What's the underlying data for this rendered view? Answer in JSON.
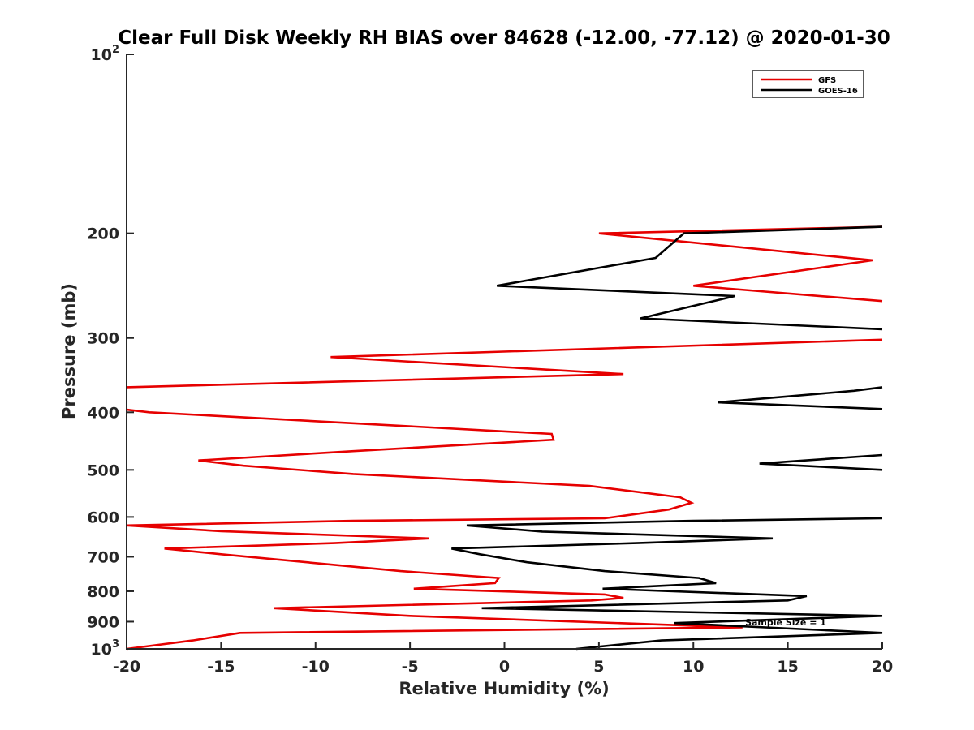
{
  "chart_data": {
    "type": "line",
    "title": "Clear Full Disk Weekly RH BIAS over 84628 (-12.00, -77.12) @ 2020-01-30",
    "xlabel": "Relative Humidity (%)",
    "ylabel": "Pressure (mb)",
    "xlim": [
      -20,
      20
    ],
    "ylim": [
      100,
      1000
    ],
    "yscale": "log",
    "y_reversed": true,
    "grid": false,
    "legend_position": "top-right",
    "x_ticks": [
      "-20",
      "-15",
      "-10",
      "-5",
      "0",
      "5",
      "10",
      "15",
      "20"
    ],
    "y_ticks": [
      {
        "value": 100,
        "base": "10",
        "exp": "2"
      },
      {
        "value": 200,
        "label": "200"
      },
      {
        "value": 300,
        "label": "300"
      },
      {
        "value": 400,
        "label": "400"
      },
      {
        "value": 500,
        "label": "500"
      },
      {
        "value": 600,
        "label": "600"
      },
      {
        "value": 700,
        "label": "700"
      },
      {
        "value": 800,
        "label": "800"
      },
      {
        "value": 900,
        "label": "900"
      },
      {
        "value": 1000,
        "base": "10",
        "exp": "3"
      }
    ],
    "series": [
      {
        "name": "GFS",
        "color": "#e60000",
        "points": [
          [
            20.0,
            195
          ],
          [
            5.0,
            200
          ],
          [
            19.5,
            222
          ],
          [
            10.0,
            245
          ],
          [
            20.0,
            260
          ],
          [
            null,
            null
          ],
          [
            20.0,
            302
          ],
          [
            -9.2,
            323
          ],
          [
            6.3,
            345
          ],
          [
            -20.0,
            363
          ],
          [
            null,
            null
          ],
          [
            -20.0,
            396
          ],
          [
            -18.8,
            400
          ],
          [
            2.5,
            435
          ],
          [
            2.6,
            445
          ],
          [
            -8.0,
            465
          ],
          [
            -16.2,
            482
          ],
          [
            -13.8,
            492
          ],
          [
            -8.0,
            508
          ],
          [
            4.5,
            532
          ],
          [
            9.3,
            556
          ],
          [
            9.9,
            568
          ],
          [
            8.7,
            583
          ],
          [
            5.3,
            603
          ],
          [
            -8.0,
            609
          ],
          [
            -20.0,
            620
          ],
          [
            -15.0,
            634
          ],
          [
            -4.0,
            652
          ],
          [
            -9.0,
            664
          ],
          [
            -18.0,
            678
          ],
          [
            -15.0,
            693
          ],
          [
            -5.5,
            740
          ],
          [
            -0.3,
            760
          ],
          [
            -0.5,
            775
          ],
          [
            -4.8,
            792
          ],
          [
            5.3,
            810
          ],
          [
            6.3,
            821
          ],
          [
            4.6,
            829
          ],
          [
            -12.2,
            854
          ],
          [
            -5.0,
            880
          ],
          [
            12.6,
            920
          ],
          [
            -14.0,
            940
          ],
          [
            -16.5,
            968
          ],
          [
            -20.0,
            1000
          ]
        ]
      },
      {
        "name": "GOES-16",
        "color": "#000000",
        "points": [
          [
            20.0,
            195
          ],
          [
            9.5,
            200
          ],
          [
            8.0,
            220
          ],
          [
            -0.4,
            245
          ],
          [
            12.2,
            255
          ],
          [
            7.2,
            278
          ],
          [
            20.0,
            290
          ],
          [
            null,
            null
          ],
          [
            20.0,
            363
          ],
          [
            18.5,
            368
          ],
          [
            11.3,
            385
          ],
          [
            20.0,
            395
          ],
          [
            null,
            null
          ],
          [
            20.0,
            472
          ],
          [
            13.5,
            488
          ],
          [
            20.0,
            500
          ],
          [
            null,
            null
          ],
          [
            20.0,
            603
          ],
          [
            10.0,
            609
          ],
          [
            -2.0,
            620
          ],
          [
            2.0,
            635
          ],
          [
            14.2,
            652
          ],
          [
            7.0,
            664
          ],
          [
            -2.8,
            678
          ],
          [
            -1.3,
            693
          ],
          [
            1.2,
            715
          ],
          [
            5.3,
            740
          ],
          [
            10.3,
            760
          ],
          [
            11.2,
            775
          ],
          [
            5.2,
            792
          ],
          [
            16.0,
            815
          ],
          [
            15.0,
            829
          ],
          [
            -1.2,
            854
          ],
          [
            20.0,
            880
          ],
          [
            9.0,
            905
          ],
          [
            20.0,
            940
          ],
          [
            8.3,
            968
          ],
          [
            3.8,
            1000
          ]
        ]
      }
    ],
    "annotation": "Sample Size = 1"
  }
}
